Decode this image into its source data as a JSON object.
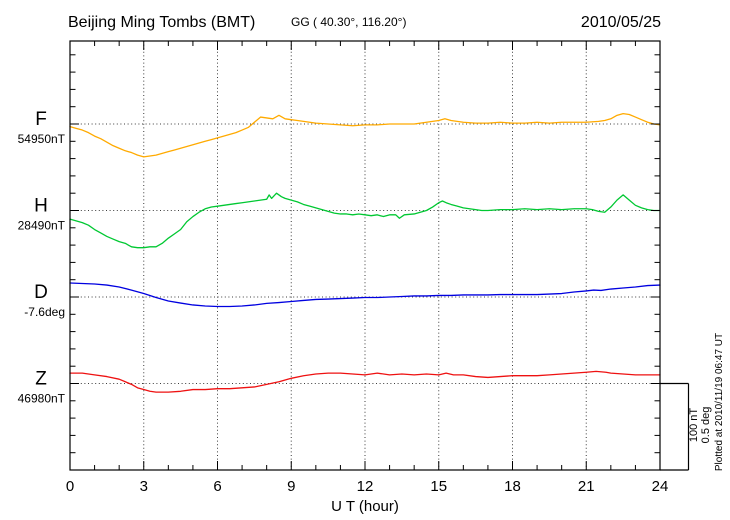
{
  "header": {
    "station_title": "Beijing Ming Tombs (BMT)",
    "coordinates": "GG ( 40.30°, 116.20°)",
    "date": "2010/05/25"
  },
  "axes": {
    "x_label": "U T (hour)",
    "x_ticks": [
      0,
      3,
      6,
      9,
      12,
      15,
      18,
      21,
      24
    ],
    "x_minor_step_hours": 1,
    "x_range": [
      0,
      24
    ],
    "grid_hours": [
      3,
      6,
      9,
      12,
      15,
      18,
      21
    ]
  },
  "scale_bar": {
    "nT_label": "100 nT",
    "deg_label": "0.5 deg"
  },
  "footer_note": "Plotted at 2010/11/19 06:47 UT",
  "chart_data": {
    "type": "line",
    "title": "Beijing Ming Tombs (BMT)",
    "subtitle": "GG ( 40.30°, 116.20°)",
    "date": "2010/05/25",
    "xlabel": "U T (hour)",
    "x_range": [
      0,
      24
    ],
    "x_ticks": [
      0,
      3,
      6,
      9,
      12,
      15,
      18,
      21,
      24
    ],
    "division_scale": {
      "nT": 100,
      "deg": 0.5
    },
    "grid": true,
    "series": [
      {
        "name": "F",
        "unit": "nT",
        "reference": 54950,
        "ref_label": "54950nT",
        "color": "#ffaa00",
        "points": [
          [
            0,
            54947
          ],
          [
            0.25,
            54945
          ],
          [
            0.5,
            54943
          ],
          [
            0.75,
            54940
          ],
          [
            1,
            54936
          ],
          [
            1.25,
            54933
          ],
          [
            1.5,
            54929
          ],
          [
            1.75,
            54925
          ],
          [
            2,
            54922
          ],
          [
            2.25,
            54919
          ],
          [
            2.5,
            54917
          ],
          [
            2.75,
            54914
          ],
          [
            3,
            54912
          ],
          [
            3.25,
            54913
          ],
          [
            3.5,
            54914
          ],
          [
            3.75,
            54916
          ],
          [
            4,
            54918
          ],
          [
            4.25,
            54920
          ],
          [
            4.5,
            54922
          ],
          [
            4.75,
            54924
          ],
          [
            5,
            54926
          ],
          [
            5.25,
            54928
          ],
          [
            5.5,
            54930
          ],
          [
            5.75,
            54932
          ],
          [
            6,
            54934
          ],
          [
            6.25,
            54936
          ],
          [
            6.5,
            54938
          ],
          [
            6.75,
            54940
          ],
          [
            7,
            54943
          ],
          [
            7.25,
            54946
          ],
          [
            7.5,
            54952
          ],
          [
            7.75,
            54958
          ],
          [
            8,
            54957
          ],
          [
            8.25,
            54956
          ],
          [
            8.5,
            54960
          ],
          [
            8.75,
            54956
          ],
          [
            9,
            54955
          ],
          [
            9.25,
            54954
          ],
          [
            9.5,
            54953
          ],
          [
            9.75,
            54952
          ],
          [
            10,
            54951
          ],
          [
            10.5,
            54950
          ],
          [
            11,
            54949
          ],
          [
            11.5,
            54948
          ],
          [
            12,
            54949
          ],
          [
            12.5,
            54949
          ],
          [
            13,
            54950
          ],
          [
            13.5,
            54950
          ],
          [
            14,
            54950
          ],
          [
            14.5,
            54952
          ],
          [
            15,
            54954
          ],
          [
            15.25,
            54956
          ],
          [
            15.5,
            54954
          ],
          [
            16,
            54952
          ],
          [
            16.5,
            54951
          ],
          [
            17,
            54951
          ],
          [
            17.5,
            54952
          ],
          [
            18,
            54951
          ],
          [
            18.5,
            54951
          ],
          [
            19,
            54952
          ],
          [
            19.5,
            54951
          ],
          [
            20,
            54952
          ],
          [
            20.5,
            54952
          ],
          [
            21,
            54952
          ],
          [
            21.5,
            54953
          ],
          [
            21.75,
            54954
          ],
          [
            22,
            54956
          ],
          [
            22.25,
            54960
          ],
          [
            22.5,
            54962
          ],
          [
            22.75,
            54961
          ],
          [
            23,
            54958
          ],
          [
            23.25,
            54955
          ],
          [
            23.5,
            54952
          ],
          [
            23.75,
            54950
          ],
          [
            24,
            54949
          ]
        ]
      },
      {
        "name": "H",
        "unit": "nT",
        "reference": 28490,
        "ref_label": "28490nT",
        "color": "#00c832",
        "points": [
          [
            0,
            28480
          ],
          [
            0.25,
            28478
          ],
          [
            0.5,
            28476
          ],
          [
            0.75,
            28473
          ],
          [
            1,
            28468
          ],
          [
            1.25,
            28464
          ],
          [
            1.5,
            28460
          ],
          [
            1.75,
            28457
          ],
          [
            2,
            28454
          ],
          [
            2.25,
            28452
          ],
          [
            2.5,
            28448
          ],
          [
            2.75,
            28447
          ],
          [
            3,
            28447
          ],
          [
            3.25,
            28448
          ],
          [
            3.5,
            28448
          ],
          [
            3.75,
            28452
          ],
          [
            4,
            28458
          ],
          [
            4.25,
            28463
          ],
          [
            4.5,
            28468
          ],
          [
            4.75,
            28477
          ],
          [
            5,
            28483
          ],
          [
            5.25,
            28488
          ],
          [
            5.5,
            28492
          ],
          [
            5.75,
            28494
          ],
          [
            6,
            28495
          ],
          [
            6.25,
            28496
          ],
          [
            6.5,
            28497
          ],
          [
            6.75,
            28498
          ],
          [
            7,
            28499
          ],
          [
            7.25,
            28500
          ],
          [
            7.5,
            28501
          ],
          [
            7.75,
            28502
          ],
          [
            8,
            28503
          ],
          [
            8.1,
            28508
          ],
          [
            8.2,
            28504
          ],
          [
            8.4,
            28510
          ],
          [
            8.6,
            28506
          ],
          [
            8.75,
            28504
          ],
          [
            9,
            28502
          ],
          [
            9.25,
            28500
          ],
          [
            9.5,
            28497
          ],
          [
            9.75,
            28495
          ],
          [
            10,
            28493
          ],
          [
            10.25,
            28491
          ],
          [
            10.5,
            28489
          ],
          [
            10.75,
            28487
          ],
          [
            11,
            28486
          ],
          [
            11.25,
            28486
          ],
          [
            11.5,
            28485
          ],
          [
            11.75,
            28486
          ],
          [
            12,
            28485
          ],
          [
            12.25,
            28484
          ],
          [
            12.5,
            28485
          ],
          [
            12.75,
            28483
          ],
          [
            13,
            28485
          ],
          [
            13.25,
            28485
          ],
          [
            13.4,
            28481
          ],
          [
            13.6,
            28485
          ],
          [
            14,
            28486
          ],
          [
            14.25,
            28488
          ],
          [
            14.5,
            28490
          ],
          [
            14.75,
            28494
          ],
          [
            15,
            28499
          ],
          [
            15.15,
            28501
          ],
          [
            15.3,
            28499
          ],
          [
            15.5,
            28497
          ],
          [
            15.75,
            28495
          ],
          [
            16,
            28493
          ],
          [
            16.25,
            28492
          ],
          [
            16.5,
            28491
          ],
          [
            16.75,
            28490
          ],
          [
            17,
            28490
          ],
          [
            17.5,
            28491
          ],
          [
            18,
            28491
          ],
          [
            18.5,
            28492
          ],
          [
            19,
            28491
          ],
          [
            19.5,
            28492
          ],
          [
            20,
            28491
          ],
          [
            20.5,
            28492
          ],
          [
            21,
            28492
          ],
          [
            21.25,
            28491
          ],
          [
            21.5,
            28489
          ],
          [
            21.75,
            28488
          ],
          [
            22,
            28494
          ],
          [
            22.25,
            28502
          ],
          [
            22.5,
            28508
          ],
          [
            22.75,
            28502
          ],
          [
            23,
            28496
          ],
          [
            23.25,
            28493
          ],
          [
            23.5,
            28491
          ],
          [
            23.75,
            28490
          ],
          [
            24,
            28490
          ]
        ]
      },
      {
        "name": "D",
        "unit": "deg",
        "reference": -7.6,
        "ref_label": "-7.6deg",
        "color": "#0000e0",
        "points": [
          [
            0,
            -7.519
          ],
          [
            0.5,
            -7.522
          ],
          [
            1,
            -7.525
          ],
          [
            1.5,
            -7.531
          ],
          [
            2,
            -7.542
          ],
          [
            2.5,
            -7.56
          ],
          [
            3,
            -7.58
          ],
          [
            3.5,
            -7.603
          ],
          [
            4,
            -7.623
          ],
          [
            4.5,
            -7.635
          ],
          [
            5,
            -7.646
          ],
          [
            5.5,
            -7.652
          ],
          [
            6,
            -7.655
          ],
          [
            6.5,
            -7.655
          ],
          [
            7,
            -7.652
          ],
          [
            7.5,
            -7.646
          ],
          [
            8,
            -7.637
          ],
          [
            8.5,
            -7.632
          ],
          [
            9,
            -7.626
          ],
          [
            9.5,
            -7.62
          ],
          [
            10,
            -7.614
          ],
          [
            10.5,
            -7.612
          ],
          [
            11,
            -7.609
          ],
          [
            11.5,
            -7.606
          ],
          [
            12,
            -7.603
          ],
          [
            12.5,
            -7.603
          ],
          [
            13,
            -7.6
          ],
          [
            13.5,
            -7.597
          ],
          [
            14,
            -7.594
          ],
          [
            14.5,
            -7.594
          ],
          [
            15,
            -7.591
          ],
          [
            15.5,
            -7.591
          ],
          [
            16,
            -7.588
          ],
          [
            16.5,
            -7.588
          ],
          [
            17,
            -7.588
          ],
          [
            17.5,
            -7.586
          ],
          [
            18,
            -7.586
          ],
          [
            18.5,
            -7.586
          ],
          [
            19,
            -7.586
          ],
          [
            19.5,
            -7.583
          ],
          [
            20,
            -7.58
          ],
          [
            20.5,
            -7.571
          ],
          [
            21,
            -7.565
          ],
          [
            21.3,
            -7.56
          ],
          [
            21.6,
            -7.562
          ],
          [
            22,
            -7.554
          ],
          [
            22.5,
            -7.548
          ],
          [
            23,
            -7.542
          ],
          [
            23.5,
            -7.534
          ],
          [
            24,
            -7.531
          ]
        ]
      },
      {
        "name": "Z",
        "unit": "nT",
        "reference": 46980,
        "ref_label": "46980nT",
        "color": "#ee1111",
        "points": [
          [
            0,
            46992
          ],
          [
            0.5,
            46992
          ],
          [
            1,
            46990
          ],
          [
            1.5,
            46988
          ],
          [
            2,
            46985
          ],
          [
            2.25,
            46982
          ],
          [
            2.5,
            46979
          ],
          [
            2.75,
            46975
          ],
          [
            3,
            46973
          ],
          [
            3.25,
            46971
          ],
          [
            3.5,
            46970
          ],
          [
            3.75,
            46970
          ],
          [
            4,
            46970
          ],
          [
            4.5,
            46971
          ],
          [
            5,
            46973
          ],
          [
            5.5,
            46973
          ],
          [
            6,
            46974
          ],
          [
            6.5,
            46974
          ],
          [
            7,
            46975
          ],
          [
            7.5,
            46976
          ],
          [
            8,
            46979
          ],
          [
            8.5,
            46982
          ],
          [
            9,
            46986
          ],
          [
            9.5,
            46989
          ],
          [
            10,
            46991
          ],
          [
            10.5,
            46992
          ],
          [
            11,
            46992
          ],
          [
            11.5,
            46991
          ],
          [
            12,
            46990
          ],
          [
            12.5,
            46992
          ],
          [
            13,
            46990
          ],
          [
            13.5,
            46991
          ],
          [
            14,
            46990
          ],
          [
            14.5,
            46991
          ],
          [
            15,
            46990
          ],
          [
            15.3,
            46992
          ],
          [
            15.6,
            46990
          ],
          [
            16,
            46990
          ],
          [
            16.5,
            46988
          ],
          [
            17,
            46987
          ],
          [
            17.5,
            46988
          ],
          [
            18,
            46989
          ],
          [
            18.5,
            46989
          ],
          [
            19,
            46989
          ],
          [
            19.5,
            46990
          ],
          [
            20,
            46991
          ],
          [
            20.5,
            46992
          ],
          [
            21,
            46993
          ],
          [
            21.4,
            46994
          ],
          [
            21.8,
            46993
          ],
          [
            22,
            46992
          ],
          [
            22.5,
            46991
          ],
          [
            23,
            46990
          ],
          [
            23.5,
            46990
          ],
          [
            24,
            46990
          ]
        ]
      }
    ]
  }
}
